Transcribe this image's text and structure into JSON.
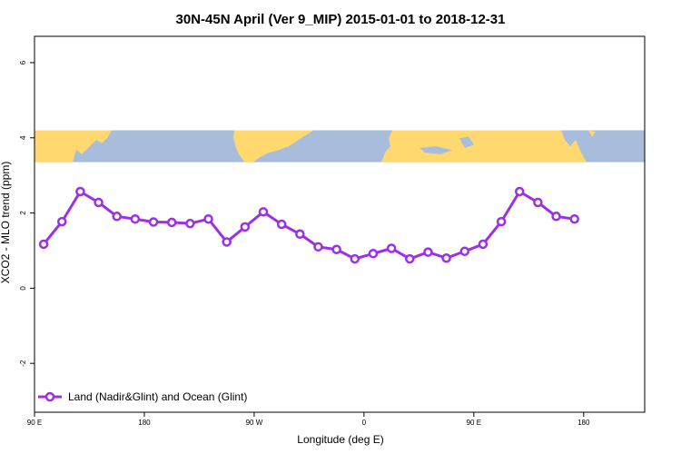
{
  "chart_data": {
    "type": "line",
    "title": "30N-45N April (Ver 9_MIP)   2015-01-01 to 2018-12-31",
    "xlabel": "Longitude (deg E)",
    "ylabel": "XCO2 - MLO trend (ppm)",
    "xlim": [
      90,
      590
    ],
    "ylim": [
      -3.3,
      6.7
    ],
    "x_ticks": [
      {
        "value": 90,
        "label": "90 E"
      },
      {
        "value": 180,
        "label": "180"
      },
      {
        "value": 270,
        "label": "90 W"
      },
      {
        "value": 360,
        "label": "0"
      },
      {
        "value": 450,
        "label": "90 E"
      },
      {
        "value": 540,
        "label": "180"
      }
    ],
    "y_ticks": [
      {
        "value": -2,
        "label": "-2"
      },
      {
        "value": 0,
        "label": "0"
      },
      {
        "value": 2,
        "label": "2"
      },
      {
        "value": 4,
        "label": "4"
      },
      {
        "value": 6,
        "label": "6"
      }
    ],
    "map_strip": {
      "y_bottom": 3.35,
      "y_top": 4.2,
      "land_color": "#ffd970",
      "ocean_color": "#a8bcdc"
    },
    "grid": false,
    "legend_position": "bottom-left",
    "series": [
      {
        "name": "Land (Nadir&Glint) and Ocean (Glint)",
        "color": "#9b30e6",
        "x": [
          97.5,
          112.5,
          127.5,
          142.5,
          157.5,
          172.5,
          187.5,
          202.5,
          217.5,
          232.5,
          247.5,
          262.5,
          277.5,
          292.5,
          307.5,
          322.5,
          337.5,
          352.5,
          367.5,
          382.5,
          397.5,
          412.5,
          427.5,
          442.5,
          457.5,
          472.5,
          487.5,
          502.5,
          517.5,
          532.5,
          547.5
        ],
        "y": [
          1.17,
          1.77,
          2.57,
          2.28,
          1.91,
          1.84,
          1.76,
          1.75,
          1.72,
          1.84,
          1.23,
          1.63,
          2.03,
          1.7,
          1.44,
          1.1,
          1.03,
          0.78,
          0.92,
          1.06,
          0.78,
          0.96,
          0.8,
          0.98,
          1.17,
          1.77,
          2.57,
          2.28,
          1.91,
          1.84,
          null
        ]
      }
    ]
  }
}
